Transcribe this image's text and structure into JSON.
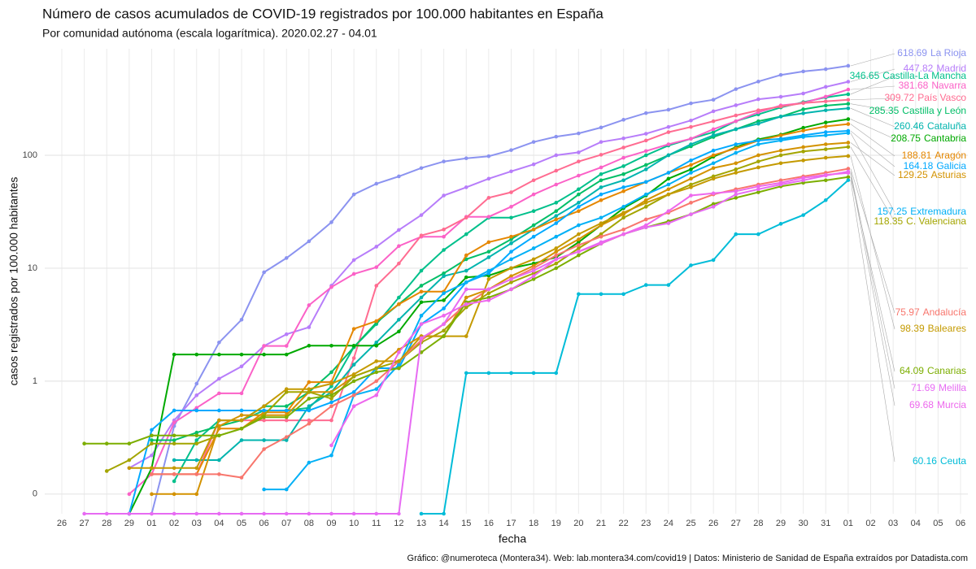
{
  "chart_data": {
    "type": "line",
    "title": "Número de casos acumulados de COVID-19 registrados por 100.000 habitantes en España",
    "subtitle": "Por comunidad autónoma (escala logarítmica). 2020.02.27 - 04.01",
    "x_label": "fecha",
    "y_label": "casos registrados por 100.000 habitantes",
    "caption": "Gráfico: @numeroteca (Montera34). Web: lab.montera34.com/covid19 | Datos: Ministerio de Sanidad de España extraídos por Datadista.com",
    "log_scale": true,
    "grid": true,
    "categories": [
      "26",
      "27",
      "28",
      "29",
      "01",
      "02",
      "03",
      "04",
      "05",
      "06",
      "07",
      "08",
      "09",
      "10",
      "11",
      "12",
      "13",
      "14",
      "15",
      "16",
      "17",
      "18",
      "19",
      "20",
      "21",
      "22",
      "23",
      "24",
      "25",
      "26",
      "27",
      "28",
      "29",
      "30",
      "31",
      "01",
      "02",
      "03",
      "04",
      "05",
      "06"
    ],
    "ylim": [
      0.067,
      876
    ],
    "yticks": [
      {
        "value": 0.1,
        "label": "0"
      },
      1,
      10,
      100
    ],
    "series": [
      {
        "name": "La Rioja",
        "color": "#8b93f0",
        "values": [
          null,
          null,
          null,
          0,
          0,
          0.4,
          0.95,
          2.2,
          3.5,
          9.2,
          12.3,
          17.3,
          25.5,
          45,
          56,
          65,
          77,
          88,
          94,
          98,
          111,
          131,
          146,
          156,
          176,
          206,
          236,
          253,
          288,
          310,
          385,
          449,
          514,
          552,
          578,
          618.69,
          null,
          null,
          null,
          null,
          null
        ]
      },
      {
        "name": "Madrid",
        "color": "#b77dfa",
        "values": [
          null,
          null,
          null,
          0.17,
          0.22,
          0.45,
          0.75,
          1.05,
          1.35,
          2.05,
          2.6,
          3.0,
          7.0,
          11.8,
          15.5,
          21.8,
          29.5,
          44,
          52,
          62,
          72,
          83,
          100,
          106,
          131,
          141,
          155,
          178,
          203,
          245,
          277,
          313,
          329,
          352,
          403,
          447.82,
          null,
          null,
          null,
          null,
          null
        ]
      },
      {
        "name": "Castilla-La Mancha",
        "color": "#00c08b",
        "values": [
          null,
          null,
          null,
          null,
          null,
          0.13,
          0.3,
          0.45,
          0.45,
          0.55,
          0.55,
          0.58,
          0.9,
          2.0,
          3.2,
          5.5,
          9.5,
          14.5,
          20,
          28,
          28,
          32,
          38,
          50,
          68,
          80,
          100,
          122,
          140,
          160,
          200,
          230,
          265,
          295,
          325,
          346.65,
          null,
          null,
          null,
          null,
          null
        ]
      },
      {
        "name": "Navarra",
        "color": "#fb61c7",
        "values": [
          null,
          null,
          null,
          0.1,
          0.15,
          0.43,
          0.58,
          0.78,
          0.78,
          2.05,
          2.05,
          4.7,
          6.8,
          8.9,
          10.2,
          15.7,
          19,
          19,
          28.5,
          28.5,
          35,
          45,
          55,
          66,
          78,
          95,
          109,
          125,
          140,
          170,
          200,
          240,
          276,
          290,
          330,
          381.68,
          null,
          null,
          null,
          null,
          null
        ]
      },
      {
        "name": "País Vasco",
        "color": "#ff6c91",
        "values": [
          null,
          null,
          null,
          null,
          0.15,
          0.15,
          0.15,
          0.45,
          0.45,
          0.45,
          0.45,
          0.45,
          0.45,
          1.6,
          7,
          11,
          19.5,
          22,
          28,
          42,
          47,
          60,
          73,
          88,
          101,
          117,
          135,
          160,
          178,
          200,
          225,
          250,
          270,
          290,
          300,
          309.72,
          null,
          null,
          null,
          null,
          null
        ]
      },
      {
        "name": "Castilla y León",
        "color": "#00be67",
        "values": [
          null,
          null,
          null,
          null,
          0.3,
          0.3,
          0.35,
          0.4,
          0.45,
          0.6,
          0.6,
          0.8,
          1.2,
          2.0,
          3.3,
          4.8,
          7.0,
          9.0,
          12,
          14,
          18,
          24,
          32,
          45,
          60,
          68,
          82,
          100,
          120,
          145,
          170,
          200,
          220,
          255,
          275,
          285.35,
          null,
          null,
          null,
          null,
          null
        ]
      },
      {
        "name": "Cataluña",
        "color": "#00b4ae",
        "values": [
          null,
          null,
          null,
          null,
          null,
          0.2,
          0.2,
          0.2,
          0.3,
          0.3,
          0.3,
          0.6,
          0.8,
          1.4,
          2.2,
          3.5,
          5.5,
          8.5,
          9.5,
          12.5,
          16.6,
          22,
          29,
          38,
          52,
          60,
          75,
          100,
          125,
          150,
          170,
          190,
          220,
          235,
          250,
          260.46,
          null,
          null,
          null,
          null,
          null
        ]
      },
      {
        "name": "Cantabria",
        "color": "#00a900",
        "values": [
          null,
          null,
          null,
          0,
          0.17,
          1.72,
          1.72,
          1.72,
          1.72,
          1.72,
          1.72,
          2.06,
          2.06,
          2.06,
          2.06,
          2.75,
          5.0,
          5.2,
          8.3,
          8.6,
          10,
          11,
          12.5,
          17,
          24,
          34,
          44,
          62,
          75,
          97,
          118,
          138,
          152,
          175,
          195,
          208.75,
          null,
          null,
          null,
          null,
          null
        ]
      },
      {
        "name": "Aragón",
        "color": "#e58700",
        "values": [
          null,
          null,
          null,
          null,
          0.15,
          0.15,
          0.15,
          0.38,
          0.38,
          0.53,
          0.53,
          0.98,
          0.98,
          2.9,
          3.4,
          4.8,
          6.2,
          6.2,
          13,
          17,
          19,
          22,
          27,
          32,
          40,
          48,
          58,
          70,
          82,
          100,
          115,
          135,
          150,
          165,
          180,
          188.81,
          null,
          null,
          null,
          null,
          null
        ]
      },
      {
        "name": "Galicia",
        "color": "#00a9ff",
        "values": [
          null,
          null,
          null,
          0,
          0.37,
          0.55,
          0.55,
          0.55,
          0.55,
          0.55,
          0.55,
          0.55,
          0.65,
          0.8,
          1.3,
          1.3,
          3.2,
          4.4,
          7.5,
          9,
          14,
          19,
          25,
          35,
          45,
          52,
          58,
          70,
          90,
          110,
          125,
          135,
          140,
          150,
          160,
          164.18,
          null,
          null,
          null,
          null,
          null
        ]
      },
      {
        "name": "Asturias",
        "color": "#d39200",
        "values": [
          null,
          null,
          null,
          null,
          0.1,
          0.1,
          0.1,
          0.4,
          0.5,
          0.5,
          0.5,
          0.8,
          0.8,
          1.1,
          1.3,
          1.9,
          2.5,
          2.5,
          5.5,
          6.5,
          8.5,
          10.5,
          14,
          18,
          24,
          30,
          40,
          50,
          62,
          77,
          85,
          100,
          110,
          118,
          125,
          129.25,
          null,
          null,
          null,
          null,
          null
        ]
      },
      {
        "name": "Extremadura",
        "color": "#00b0f6",
        "values": [
          null,
          null,
          null,
          null,
          null,
          null,
          null,
          null,
          null,
          0.11,
          0.11,
          0.19,
          0.22,
          0.75,
          0.85,
          1.4,
          3.8,
          6,
          7.5,
          9.5,
          12,
          15,
          19,
          24,
          28,
          35,
          45,
          55,
          70,
          85,
          105,
          125,
          135,
          145,
          150,
          157.25,
          null,
          null,
          null,
          null,
          null
        ]
      },
      {
        "name": "C. Valenciana",
        "color": "#a3a500",
        "values": [
          null,
          null,
          0.16,
          0.2,
          0.28,
          0.28,
          0.28,
          0.33,
          0.38,
          0.5,
          0.8,
          0.8,
          0.7,
          1.1,
          1.3,
          1.5,
          2.2,
          2.8,
          4.5,
          6,
          7.5,
          9,
          11,
          15,
          20,
          28,
          35,
          45,
          55,
          65,
          75,
          88,
          100,
          108,
          113,
          118.35,
          null,
          null,
          null,
          null,
          null
        ]
      },
      {
        "name": "Andalucía",
        "color": "#f8766d",
        "values": [
          null,
          null,
          null,
          null,
          0.15,
          0.15,
          0.15,
          0.15,
          0.14,
          0.25,
          0.32,
          0.42,
          0.6,
          0.75,
          1.0,
          1.5,
          2.3,
          3.2,
          4.8,
          6.5,
          8,
          10,
          13,
          16,
          19,
          22,
          27,
          31,
          38,
          45,
          50,
          55,
          60,
          65,
          70,
          75.97,
          null,
          null,
          null,
          null,
          null
        ]
      },
      {
        "name": "Baleares",
        "color": "#c49a00",
        "values": [
          null,
          null,
          null,
          0.17,
          0.17,
          0.17,
          0.17,
          0.45,
          0.45,
          0.6,
          0.85,
          0.85,
          0.95,
          1.15,
          1.5,
          1.5,
          2.5,
          2.5,
          2.5,
          8,
          10,
          12,
          15,
          20,
          25,
          31,
          38,
          45,
          52,
          62,
          70,
          78,
          85,
          90,
          95,
          98.39,
          null,
          null,
          null,
          null,
          null
        ]
      },
      {
        "name": "Canarias",
        "color": "#7cae00",
        "values": [
          null,
          0.28,
          0.28,
          0.28,
          0.33,
          0.33,
          0.33,
          0.33,
          0.38,
          0.48,
          0.48,
          0.7,
          0.75,
          1.0,
          1.2,
          1.3,
          1.8,
          2.5,
          5,
          5.5,
          6.5,
          8,
          10,
          13,
          16.5,
          20,
          23,
          26,
          30,
          37,
          42,
          47,
          53,
          57,
          60,
          64.09,
          null,
          null,
          null,
          null,
          null
        ]
      },
      {
        "name": "Melilla",
        "color": "#e76bf3",
        "values": [
          null,
          0,
          0,
          0,
          0,
          0,
          0,
          0,
          0,
          0,
          0,
          0,
          0,
          0,
          0,
          0,
          2.4,
          3.2,
          6.5,
          6.5,
          8,
          9.5,
          12,
          14,
          17,
          20,
          23,
          25,
          30,
          35,
          45,
          50,
          55,
          60,
          66,
          71.69,
          null,
          null,
          null,
          null,
          null
        ]
      },
      {
        "name": "Murcia",
        "color": "#ed68ed",
        "values": [
          null,
          null,
          null,
          null,
          null,
          null,
          null,
          null,
          null,
          null,
          null,
          null,
          0.27,
          0.6,
          0.75,
          1.8,
          3.2,
          3.8,
          4.8,
          5.2,
          6.5,
          8.5,
          12,
          14,
          16.5,
          20,
          24,
          32,
          44,
          46,
          48,
          53,
          57,
          63,
          67,
          69.68,
          null,
          null,
          null,
          null,
          null
        ]
      },
      {
        "name": "Ceuta",
        "color": "#00bcd8",
        "values": [
          null,
          null,
          null,
          null,
          null,
          null,
          null,
          null,
          null,
          null,
          null,
          null,
          null,
          null,
          null,
          null,
          0,
          0,
          1.18,
          1.18,
          1.18,
          1.18,
          1.18,
          5.9,
          5.9,
          5.9,
          7.1,
          7.1,
          10.6,
          11.8,
          20,
          20,
          24.7,
          29.5,
          40,
          60.16,
          null,
          null,
          null,
          null,
          null
        ]
      }
    ]
  }
}
